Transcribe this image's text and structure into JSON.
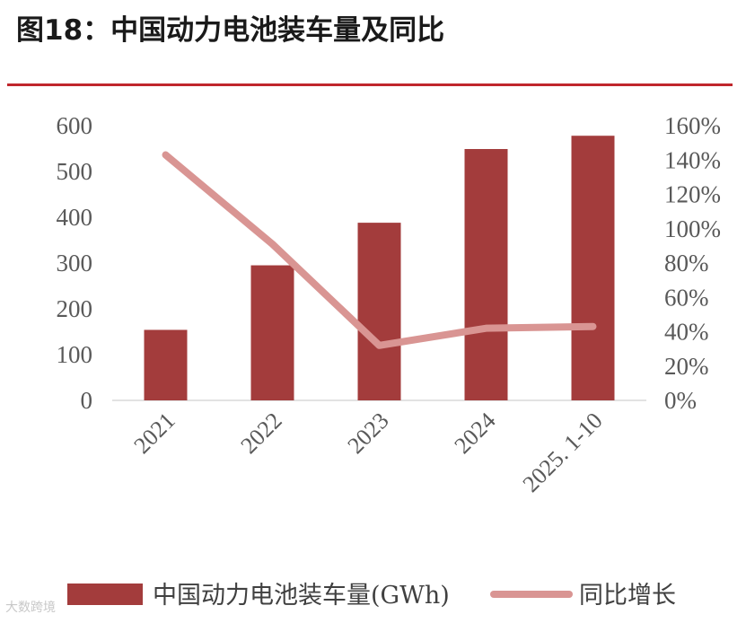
{
  "chart_data": {
    "type": "bar+line",
    "title": "图18：中国动力电池装车量及同比",
    "categories": [
      "2021",
      "2022",
      "2023",
      "2024",
      "2025. 1-10"
    ],
    "series": [
      {
        "name": "中国动力电池装车量(GWh)",
        "type": "bar",
        "axis": "left",
        "color": "#a33c3c",
        "values": [
          154,
          295,
          388,
          549,
          578
        ]
      },
      {
        "name": "同比增长",
        "type": "line",
        "axis": "right",
        "color": "#d99593",
        "values": [
          143,
          91,
          32,
          42,
          43
        ]
      }
    ],
    "y_left": {
      "min": 0,
      "max": 600,
      "step": 100,
      "tick_labels": [
        "0",
        "100",
        "200",
        "300",
        "400",
        "500",
        "600"
      ]
    },
    "y_right": {
      "min": 0,
      "max": 160,
      "step": 20,
      "tick_labels": [
        "0%",
        "20%",
        "40%",
        "60%",
        "80%",
        "100%",
        "120%",
        "140%",
        "160%"
      ]
    },
    "legend": {
      "position": "bottom",
      "items": [
        "中国动力电池装车量(GWh)",
        "同比增长"
      ]
    },
    "grid": false
  },
  "watermark": "大数跨境"
}
